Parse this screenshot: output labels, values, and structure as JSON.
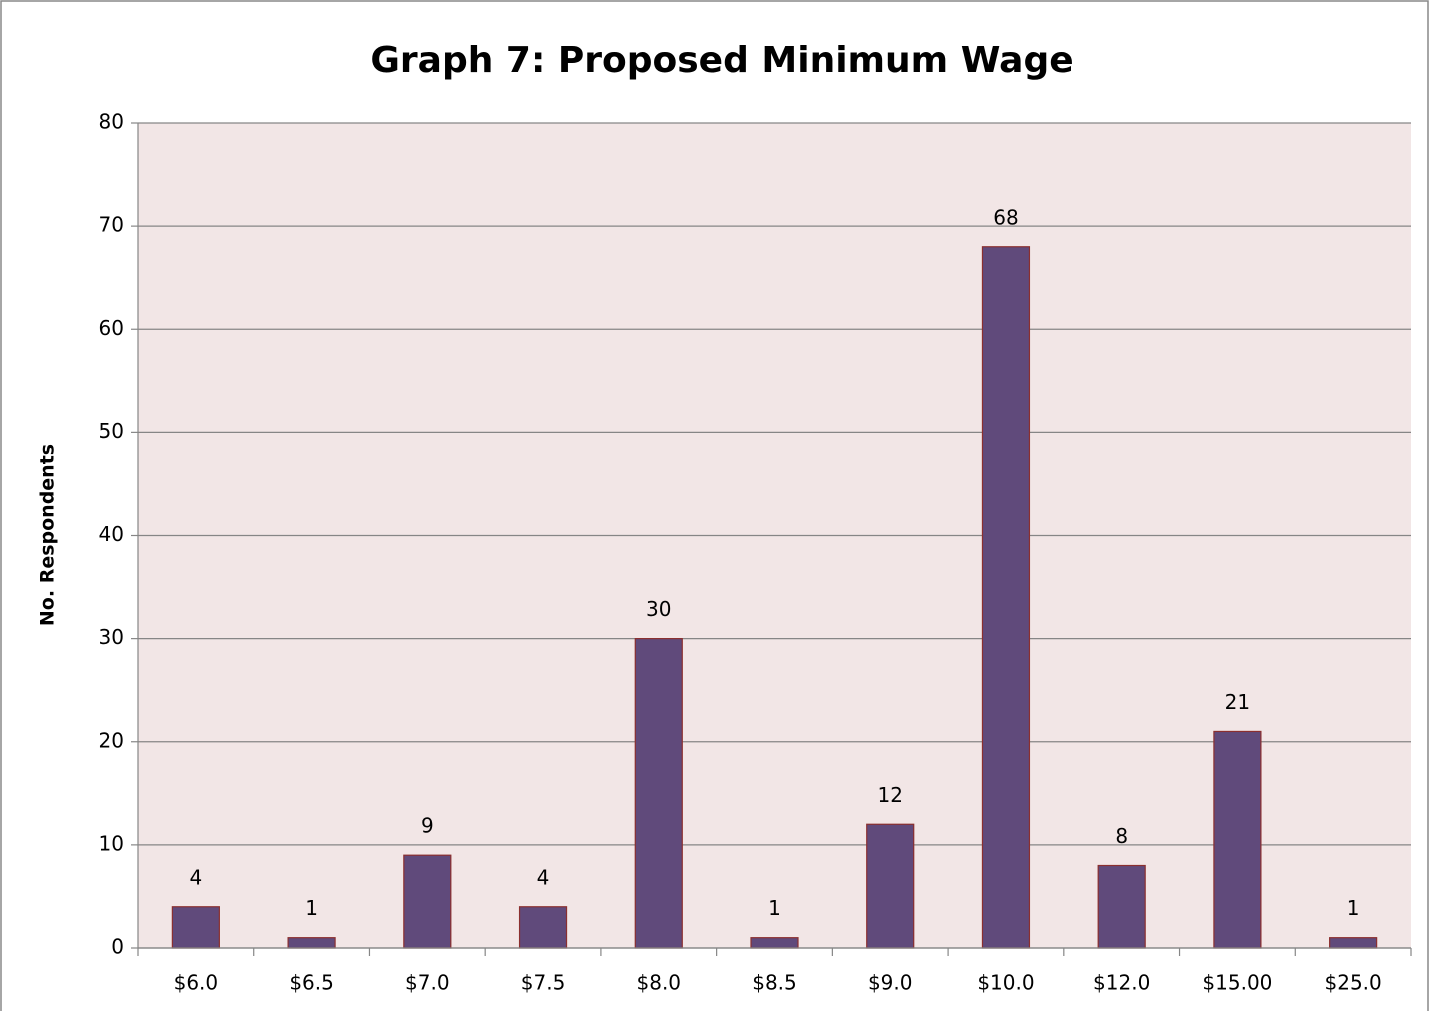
{
  "chart_data": {
    "type": "bar",
    "title": "Graph 7: Proposed Minimum Wage",
    "y_label": "No. Respondents",
    "categories": [
      "$6.0",
      "$6.5",
      "$7.0",
      "$7.5",
      "$8.0",
      "$8.5",
      "$9.0",
      "$10.0",
      "$12.0",
      "$15.00",
      "$25.0"
    ],
    "values": [
      4,
      1,
      9,
      4,
      30,
      1,
      12,
      68,
      8,
      21,
      1
    ],
    "color": "#604a7b",
    "ylim": [
      0,
      80
    ],
    "yticks": [
      0,
      10,
      20,
      30,
      40,
      50,
      60,
      70,
      80
    ],
    "grid": true
  }
}
